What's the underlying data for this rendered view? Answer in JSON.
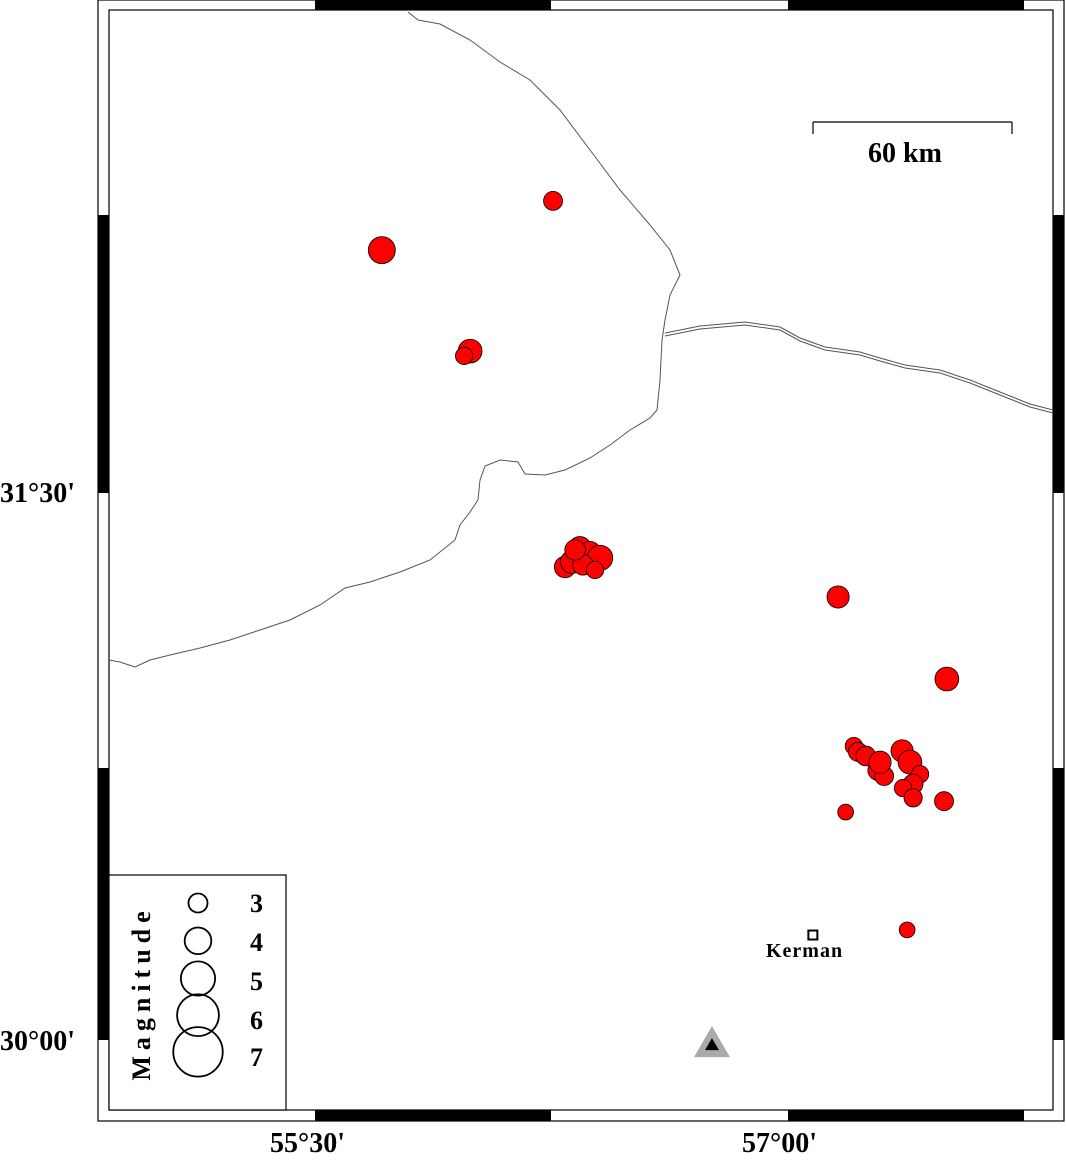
{
  "map": {
    "axes": {
      "x_ticks": [
        {
          "value": 55.5,
          "label": "55°30'"
        },
        {
          "value": 57.0,
          "label": "57°00'"
        }
      ],
      "y_ticks": [
        {
          "value": 31.5,
          "label": "31°30'"
        },
        {
          "value": 30.0,
          "label": "30°00'"
        }
      ],
      "lon_range": [
        54.847,
        57.842
      ],
      "lat_range": [
        29.812,
        32.844
      ]
    },
    "scale_bar": {
      "label": "60 km"
    },
    "legend": {
      "title": "Magnitude",
      "entries": [
        {
          "magnitude": 3,
          "label": "3"
        },
        {
          "magnitude": 4,
          "label": "4"
        },
        {
          "magnitude": 5,
          "label": "5"
        },
        {
          "magnitude": 6,
          "label": "6"
        },
        {
          "magnitude": 7,
          "label": "7"
        }
      ]
    },
    "city": {
      "name": "Kerman",
      "lon": 57.079,
      "lat": 30.288
    },
    "station": {
      "lon": 56.759,
      "lat": 29.986,
      "symbol": "triangle"
    },
    "colors": {
      "event": "#ff0000",
      "station_outer": "#aaaaaa",
      "border": "#555555"
    },
    "events": [
      {
        "lon": 56.255,
        "lat": 32.301,
        "mag": 3.0
      },
      {
        "lon": 55.712,
        "lat": 32.166,
        "mag": 4.0
      },
      {
        "lon": 55.992,
        "lat": 31.889,
        "mag": 3.6
      },
      {
        "lon": 55.973,
        "lat": 31.876,
        "mag": 2.8
      },
      {
        "lon": 56.293,
        "lat": 31.297,
        "mag": 3.3
      },
      {
        "lon": 56.315,
        "lat": 31.311,
        "mag": 3.5
      },
      {
        "lon": 56.34,
        "lat": 31.349,
        "mag": 3.5
      },
      {
        "lon": 56.372,
        "lat": 31.338,
        "mag": 3.3
      },
      {
        "lon": 56.404,
        "lat": 31.322,
        "mag": 3.8
      },
      {
        "lon": 56.35,
        "lat": 31.303,
        "mag": 3.2
      },
      {
        "lon": 56.388,
        "lat": 31.289,
        "mag": 2.8
      },
      {
        "lon": 56.325,
        "lat": 31.344,
        "mag": 3.2
      },
      {
        "lon": 57.159,
        "lat": 31.215,
        "mag": 3.4
      },
      {
        "lon": 57.504,
        "lat": 30.99,
        "mag": 3.6
      },
      {
        "lon": 57.209,
        "lat": 30.806,
        "mag": 2.8
      },
      {
        "lon": 57.222,
        "lat": 30.79,
        "mag": 3.0
      },
      {
        "lon": 57.247,
        "lat": 30.779,
        "mag": 3.1
      },
      {
        "lon": 57.286,
        "lat": 30.74,
        "mag": 3.2
      },
      {
        "lon": 57.305,
        "lat": 30.724,
        "mag": 3.0
      },
      {
        "lon": 57.292,
        "lat": 30.762,
        "mag": 3.4
      },
      {
        "lon": 57.362,
        "lat": 30.793,
        "mag": 3.4
      },
      {
        "lon": 57.387,
        "lat": 30.762,
        "mag": 3.6
      },
      {
        "lon": 57.419,
        "lat": 30.729,
        "mag": 2.8
      },
      {
        "lon": 57.397,
        "lat": 30.702,
        "mag": 3.1
      },
      {
        "lon": 57.365,
        "lat": 30.691,
        "mag": 2.8
      },
      {
        "lon": 57.397,
        "lat": 30.664,
        "mag": 2.9
      },
      {
        "lon": 57.495,
        "lat": 30.655,
        "mag": 3.0
      },
      {
        "lon": 57.183,
        "lat": 30.625,
        "mag": 2.6
      },
      {
        "lon": 57.378,
        "lat": 30.302,
        "mag": 2.6
      }
    ]
  }
}
